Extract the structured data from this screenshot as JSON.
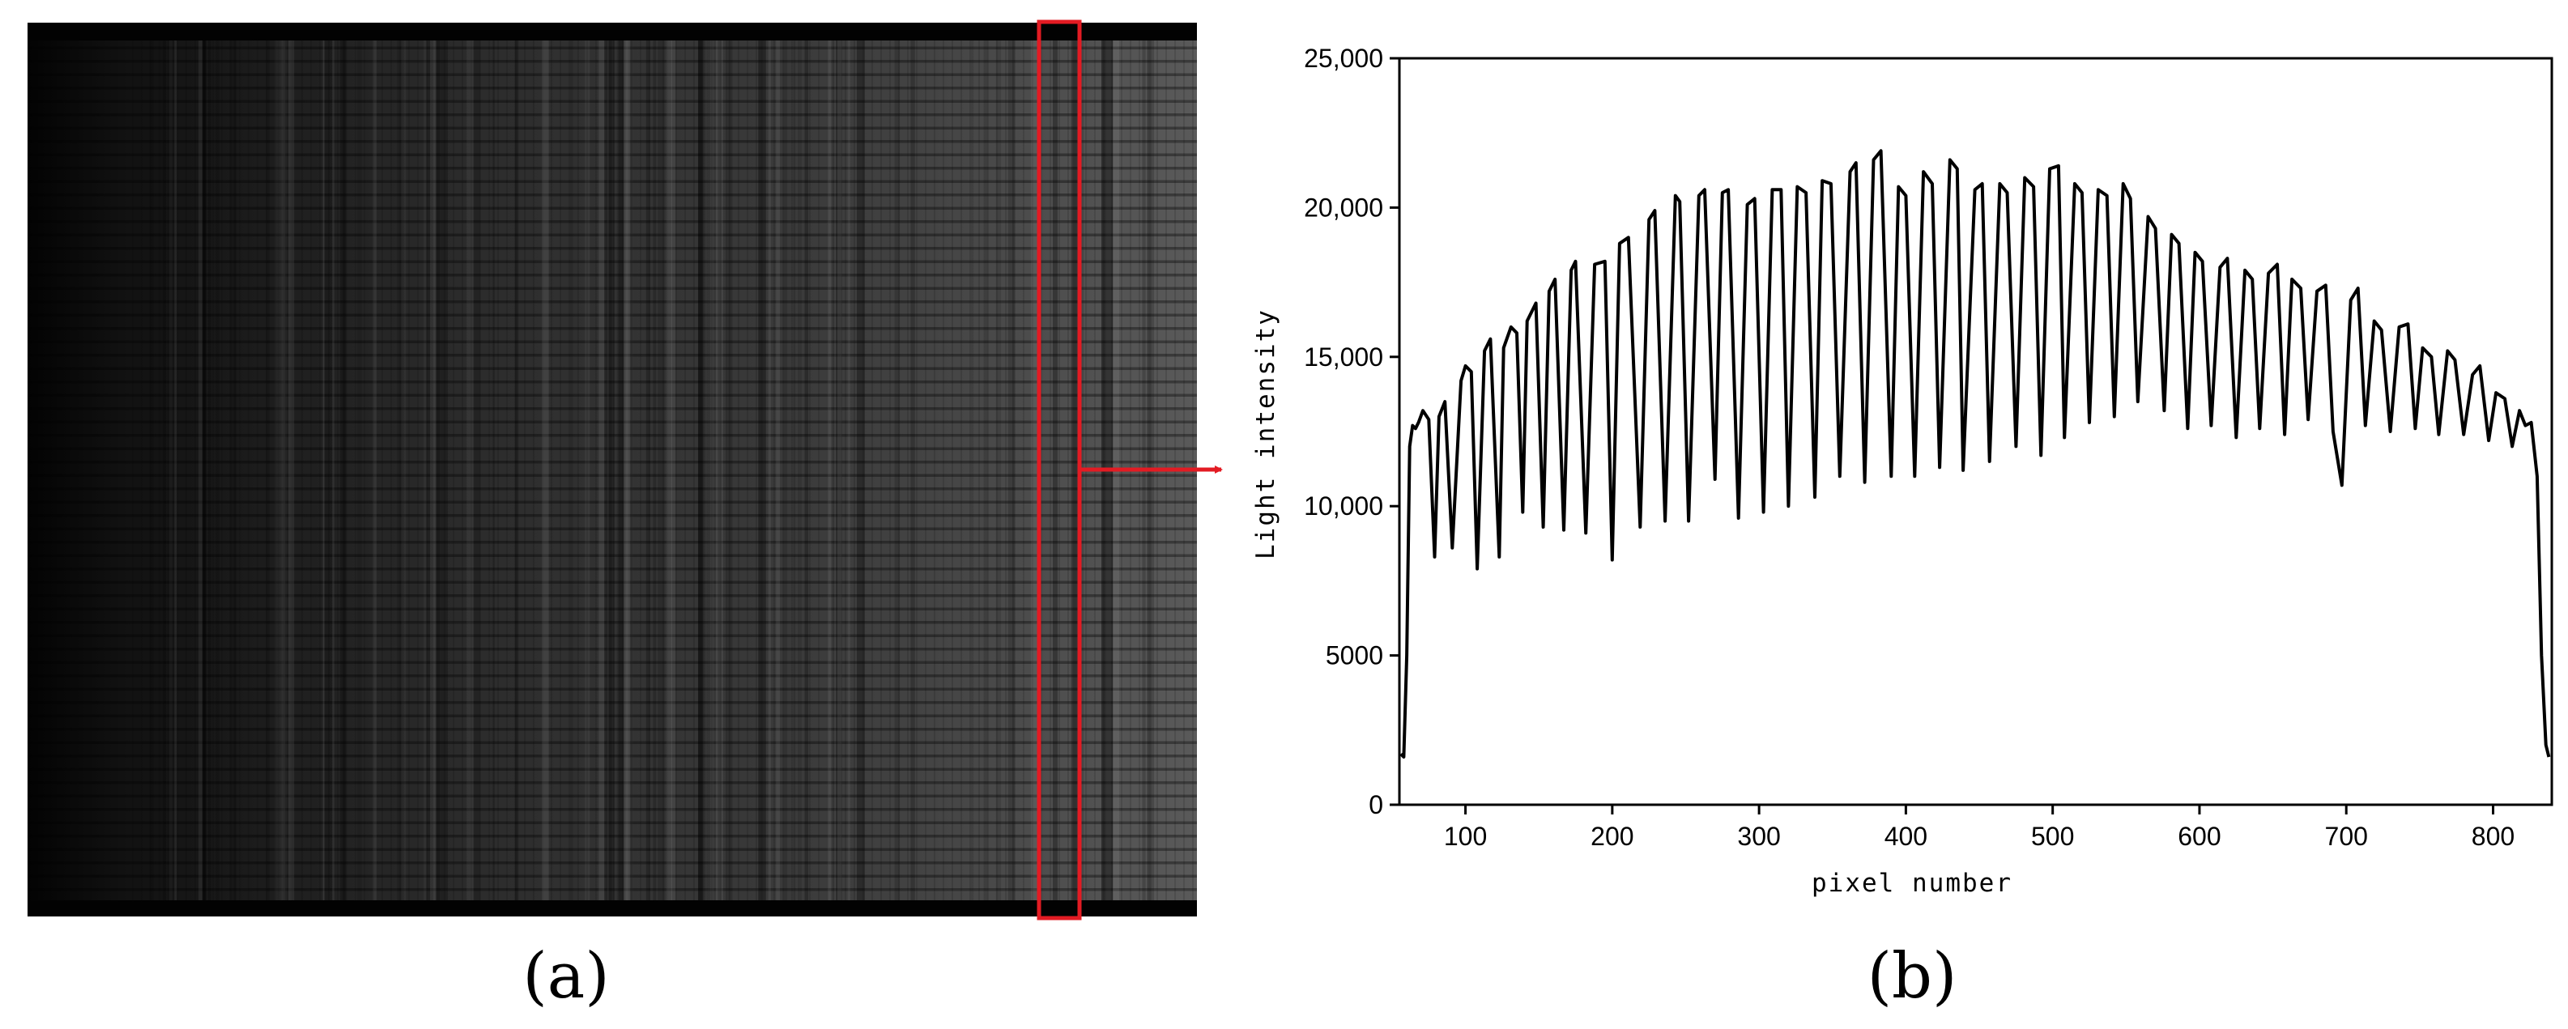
{
  "panels": {
    "a": {
      "caption": "(a)"
    },
    "b": {
      "caption": "(b)"
    }
  },
  "colors": {
    "highlight": "#e31b23",
    "line": "#000000"
  },
  "chart_data": {
    "type": "line",
    "title": "",
    "xlabel": "pixel number",
    "ylabel": "Light intensity",
    "xlim": [
      55,
      840
    ],
    "ylim": [
      0,
      25000
    ],
    "x_ticks": [
      100,
      200,
      300,
      400,
      500,
      600,
      700,
      800
    ],
    "x_tick_labels": [
      "100",
      "200",
      "300",
      "400",
      "500",
      "600",
      "700",
      "800"
    ],
    "y_ticks": [
      0,
      5000,
      10000,
      15000,
      20000,
      25000
    ],
    "y_tick_labels": [
      "0",
      "5000",
      "10,000",
      "15,000",
      "20,000",
      "25,000"
    ],
    "grid": false,
    "series": [
      {
        "x": [
          56,
          58,
          60,
          62,
          64,
          66,
          68,
          71,
          75,
          79,
          82,
          86,
          91,
          97,
          100,
          104,
          108,
          113,
          117,
          123,
          126,
          131,
          135,
          139,
          142,
          148,
          153,
          157,
          161,
          167,
          172,
          175,
          182,
          188,
          195,
          200,
          205,
          211,
          219,
          225,
          229,
          236,
          243,
          246,
          252,
          259,
          263,
          270,
          275,
          279,
          286,
          292,
          297,
          303,
          309,
          315,
          320,
          326,
          332,
          338,
          343,
          349,
          355,
          362,
          366,
          372,
          378,
          383,
          390,
          395,
          400,
          406,
          412,
          418,
          423,
          430,
          435,
          439,
          447,
          452,
          457,
          464,
          469,
          475,
          481,
          487,
          492,
          498,
          504,
          508,
          515,
          520,
          525,
          531,
          537,
          542,
          548,
          553,
          558,
          565,
          570,
          576,
          581,
          586,
          592,
          597,
          602,
          608,
          614,
          619,
          625,
          631,
          636,
          641,
          647,
          653,
          658,
          663,
          669,
          674,
          680,
          686,
          691,
          697,
          703,
          708,
          713,
          719,
          724,
          730,
          736,
          742,
          747,
          752,
          758,
          763,
          769,
          774,
          780,
          786,
          791,
          797,
          802,
          808,
          813,
          818,
          822,
          826,
          830,
          833,
          836,
          838
        ],
        "y": [
          1700,
          1600,
          5000,
          12000,
          12700,
          12600,
          12800,
          13200,
          12900,
          8300,
          13000,
          13500,
          8600,
          14200,
          14700,
          14500,
          7900,
          15200,
          15600,
          8300,
          15300,
          16000,
          15800,
          9800,
          16200,
          16800,
          9300,
          17200,
          17600,
          9200,
          17900,
          18200,
          9100,
          18100,
          18200,
          8200,
          18800,
          19000,
          9300,
          19600,
          19900,
          9500,
          20400,
          20200,
          9500,
          20400,
          20600,
          10900,
          20500,
          20600,
          9600,
          20100,
          20300,
          9800,
          20600,
          20600,
          10000,
          20700,
          20500,
          10300,
          20900,
          20800,
          11000,
          21200,
          21500,
          10800,
          21600,
          21900,
          11000,
          20700,
          20400,
          11000,
          21200,
          20800,
          11300,
          21600,
          21300,
          11200,
          20600,
          20800,
          11500,
          20800,
          20500,
          12000,
          21000,
          20700,
          11700,
          21300,
          21400,
          12300,
          20800,
          20500,
          12800,
          20600,
          20400,
          13000,
          20800,
          20300,
          13500,
          19700,
          19300,
          13200,
          19100,
          18800,
          12600,
          18500,
          18200,
          12700,
          18000,
          18300,
          12300,
          17900,
          17600,
          12600,
          17800,
          18100,
          12400,
          17600,
          17300,
          12900,
          17200,
          17400,
          12500,
          10700,
          16900,
          17300,
          12700,
          16200,
          15900,
          12500,
          16000,
          16100,
          12600,
          15300,
          15000,
          12400,
          15200,
          14900,
          12400,
          14400,
          14700,
          12200,
          13800,
          13600,
          12000,
          13200,
          12700,
          12800,
          11000,
          5000,
          2000,
          1600
        ]
      }
    ]
  }
}
